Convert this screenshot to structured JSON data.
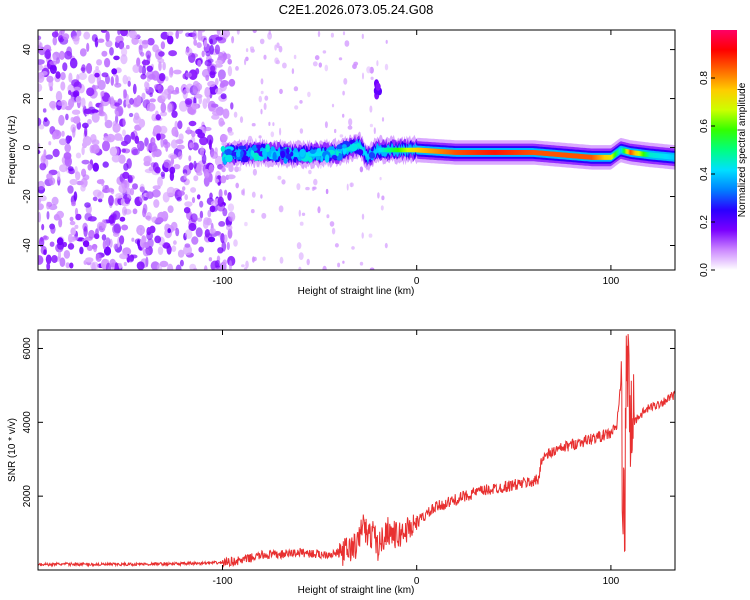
{
  "title": "C2E1.2026.073.05.24.G08",
  "chart_data": [
    {
      "type": "heatmap",
      "xlabel": "Height of straight line (km)",
      "ylabel": "Frequency (Hz)",
      "xlim": [
        -195,
        133
      ],
      "ylim": [
        -50,
        48
      ],
      "xticks": [
        -100,
        0,
        100
      ],
      "yticks": [
        -40,
        -20,
        0,
        20,
        40
      ],
      "colorbar": {
        "label": "Normalized spectral amplitude",
        "range": [
          0,
          1
        ],
        "ticks": [
          0.0,
          0.2,
          0.4,
          0.6,
          0.8
        ],
        "colors": [
          "#ffffff",
          "#cc88ff",
          "#7a00ff",
          "#2a00ff",
          "#0080ff",
          "#00e0ff",
          "#00ff80",
          "#33ff00",
          "#ccff00",
          "#ffcc00",
          "#ff6600",
          "#ff0000",
          "#ff0066"
        ]
      },
      "trace": {
        "x": [
          -100,
          -80,
          -60,
          -40,
          -30,
          -25,
          -20,
          0,
          20,
          40,
          60,
          75,
          90,
          100,
          105,
          110,
          120,
          133
        ],
        "y": [
          -3,
          -2,
          -3,
          -2,
          1,
          -4,
          -1,
          -1,
          -2,
          -2,
          -2,
          -3,
          -4,
          -4,
          -1,
          -2,
          -3,
          -4
        ],
        "amplitude": [
          0.35,
          0.4,
          0.4,
          0.45,
          0.45,
          0.4,
          0.4,
          0.75,
          0.85,
          0.9,
          0.85,
          0.85,
          0.85,
          0.7,
          0.4,
          0.85,
          0.45,
          0.4
        ]
      }
    },
    {
      "type": "line",
      "xlabel": "Height of straight line (km)",
      "ylabel": "SNR (10 * v/v)",
      "xlim": [
        -195,
        133
      ],
      "ylim": [
        0,
        6500
      ],
      "xticks": [
        -100,
        0,
        100
      ],
      "yticks": [
        2000,
        4000,
        6000
      ],
      "color": "#e83030",
      "x": [
        -195,
        -180,
        -160,
        -140,
        -120,
        -100,
        -90,
        -80,
        -70,
        -60,
        -50,
        -40,
        -35,
        -30,
        -28,
        -25,
        -22,
        -20,
        -15,
        -10,
        -5,
        0,
        5,
        10,
        20,
        30,
        40,
        50,
        60,
        63,
        64,
        70,
        80,
        90,
        100,
        103,
        105,
        107,
        108,
        110,
        115,
        120,
        125,
        133
      ],
      "y": [
        150,
        160,
        150,
        160,
        170,
        200,
        260,
        400,
        420,
        480,
        420,
        450,
        550,
        700,
        1300,
        900,
        1000,
        600,
        1100,
        900,
        1100,
        1300,
        1500,
        1700,
        1900,
        2100,
        2200,
        2300,
        2400,
        2450,
        3000,
        3200,
        3400,
        3550,
        3700,
        3900,
        5000,
        600,
        6000,
        3900,
        4200,
        4400,
        4500,
        4750
      ]
    }
  ]
}
